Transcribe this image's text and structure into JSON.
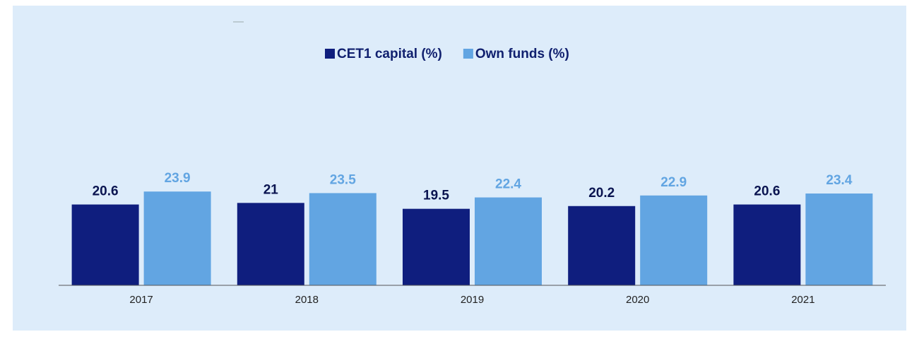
{
  "chart_data": {
    "type": "bar",
    "categories": [
      "2017",
      "2018",
      "2019",
      "2020",
      "2021"
    ],
    "series": [
      {
        "name": "CET1 capital (%)",
        "color": "#0f1e7e",
        "values": [
          20.6,
          21,
          19.5,
          20.2,
          20.6
        ]
      },
      {
        "name": "Own funds (%)",
        "color": "#62a5e2",
        "values": [
          23.9,
          23.5,
          22.4,
          22.9,
          23.4
        ]
      }
    ],
    "ylim": [
      0,
      45
    ],
    "legend": "top"
  }
}
